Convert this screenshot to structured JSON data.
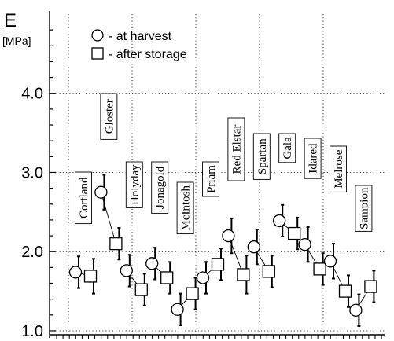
{
  "chart_data": {
    "type": "scatter",
    "ylabel": "E",
    "yunit": "[MPa]",
    "ylim": [
      0.95,
      5.0
    ],
    "yticks": [
      1.0,
      2.0,
      3.0,
      4.0
    ],
    "ytick_labels": [
      "1.0",
      "2.0",
      "3.0",
      "4.0"
    ],
    "grid": true,
    "legend_position": "top-left",
    "legend": [
      {
        "marker": "circle",
        "label": "- at harvest"
      },
      {
        "marker": "square",
        "label": "- after storage"
      }
    ],
    "categories": [
      "Cortland",
      "Gloster",
      "Holyday",
      "Jonagold",
      "McIntosh",
      "Priam",
      "Red Elstar",
      "Spartan",
      "Gala",
      "Idared",
      "Melrose",
      "Sampion"
    ],
    "series": [
      {
        "name": "at harvest",
        "marker": "circle",
        "values": [
          1.74,
          2.75,
          1.76,
          1.85,
          1.27,
          1.67,
          2.2,
          2.06,
          2.39,
          2.09,
          1.88,
          1.26
        ],
        "errors": [
          0.2,
          0.22,
          0.2,
          0.2,
          0.2,
          0.2,
          0.22,
          0.22,
          0.2,
          0.22,
          0.22,
          0.2
        ]
      },
      {
        "name": "after storage",
        "marker": "square",
        "values": [
          1.69,
          2.1,
          1.52,
          1.67,
          1.47,
          1.84,
          1.71,
          1.75,
          2.23,
          1.78,
          1.5,
          1.56
        ],
        "errors": [
          0.22,
          0.2,
          0.2,
          0.2,
          0.2,
          0.2,
          0.24,
          0.2,
          0.2,
          0.2,
          0.2,
          0.2
        ]
      }
    ]
  }
}
